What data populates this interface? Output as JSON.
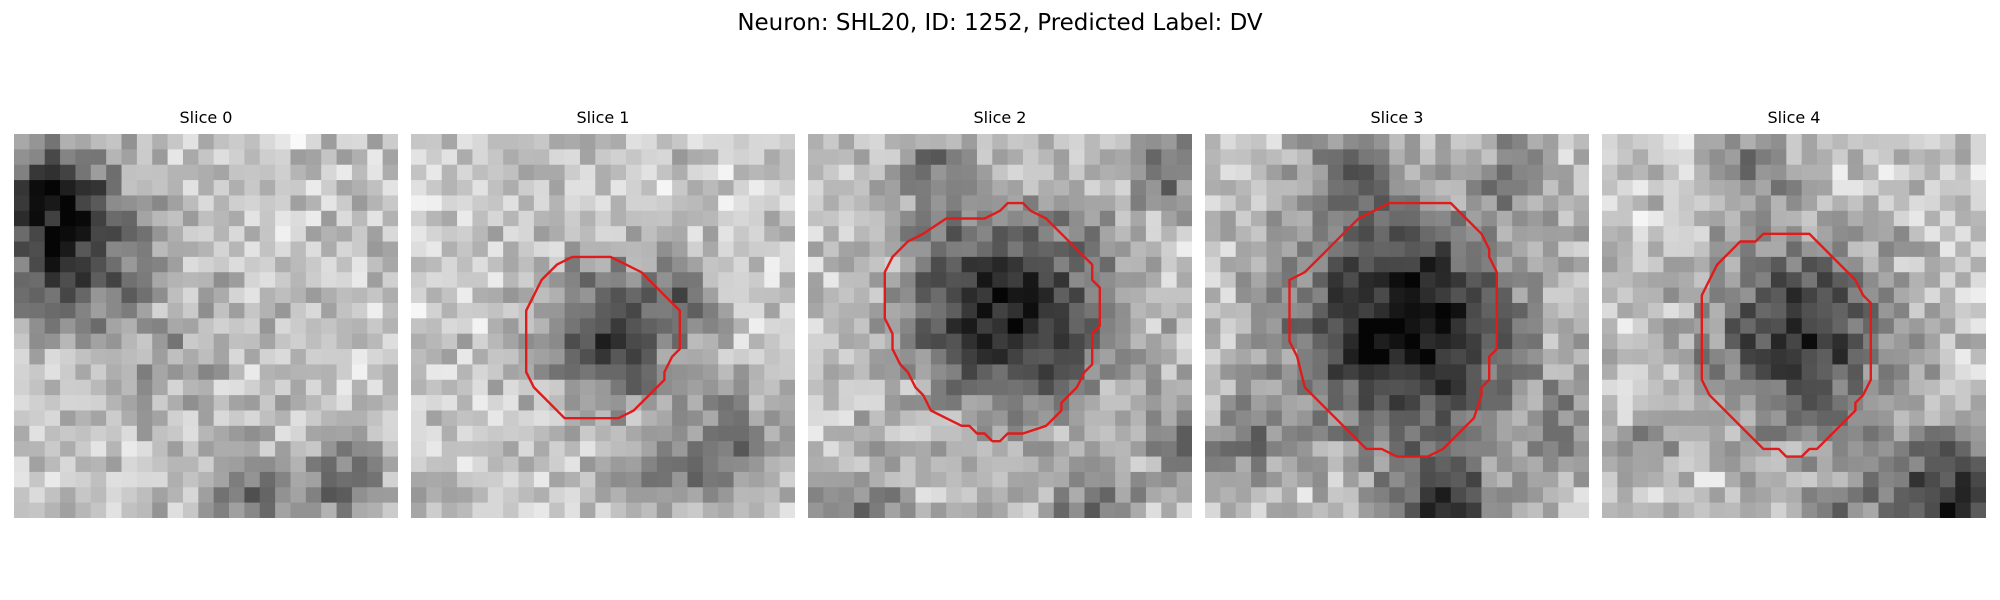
{
  "figure": {
    "title": "Neuron: SHL20, ID: 1252, Predicted Label: DV",
    "contour_color": "#e01b1b",
    "colormap": "grayscale",
    "panels": [
      {
        "title": "Slice 0",
        "has_contour": false
      },
      {
        "title": "Slice 1",
        "has_contour": true
      },
      {
        "title": "Slice 2",
        "has_contour": true
      },
      {
        "title": "Slice 3",
        "has_contour": true
      },
      {
        "title": "Slice 4",
        "has_contour": true
      }
    ]
  }
}
